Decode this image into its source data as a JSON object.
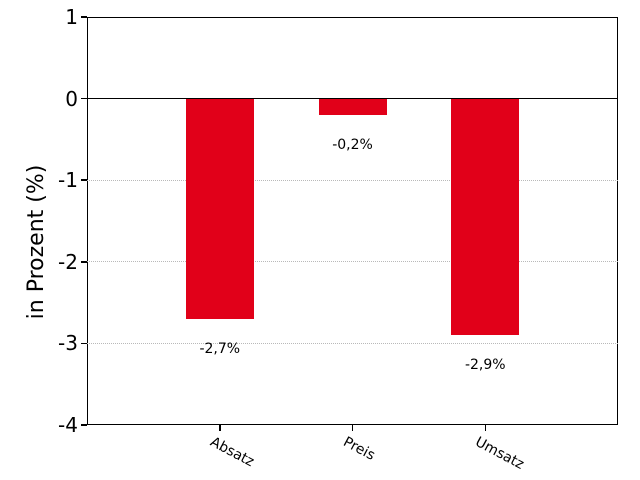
{
  "chart_data": {
    "type": "bar",
    "title": "",
    "categories": [
      "Absatz",
      "Preis",
      "Umsatz"
    ],
    "values": [
      -2.7,
      -0.2,
      -2.9
    ],
    "bar_value_labels": [
      "-2,7%",
      "-0,2%",
      "-2,9%"
    ],
    "ylabel": "in Prozent (%)",
    "xlabel": "",
    "ylim": [
      -4,
      1
    ],
    "ytick_labels": [
      "1",
      "0",
      "-1",
      "-2",
      "-3",
      "-4"
    ],
    "ytick_values": [
      1,
      0,
      -1,
      -2,
      -3,
      -4
    ],
    "gridline_values": [
      -1,
      -2,
      -3
    ],
    "zero_line_value": 0,
    "grid": "horizontal-dotted",
    "legend_position": "none",
    "x_tick_label_rotation_deg": 28,
    "colors": {
      "bar": "#e10019",
      "grid": "#b9b9b9",
      "axis": "#000000",
      "text": "#000000",
      "background": "#ffffff"
    }
  }
}
